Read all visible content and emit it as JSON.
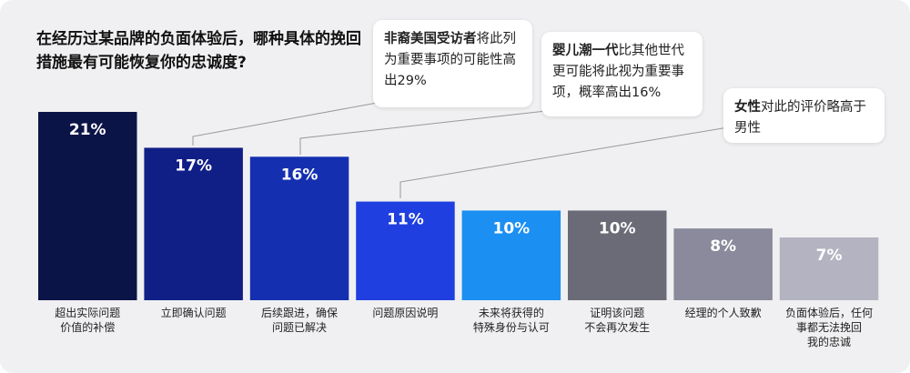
{
  "chart_data": {
    "type": "bar",
    "title": "在经历过某品牌的负面体验后，哪种具体的挽回措施最有可能恢复你的忠诚度?",
    "categories": [
      "超出实际问题\n价值的补偿",
      "立即确认问题",
      "后续跟进，确保\n问题已解决",
      "问题原因说明",
      "未来将获得的\n特殊身份与认可",
      "证明该问题\n不会再次发生",
      "经理的个人致歉",
      "负面体验后，任何\n事都无法挽回\n我的忠诚"
    ],
    "values": [
      21,
      17,
      16,
      11,
      10,
      10,
      8,
      7
    ],
    "value_labels": [
      "21%",
      "17%",
      "16%",
      "11%",
      "10%",
      "10%",
      "8%",
      "7%"
    ],
    "colors": [
      "#0b1446",
      "#101f86",
      "#1430b0",
      "#1f3fe0",
      "#1b8ff2",
      "#6b6b78",
      "#8a8a9c",
      "#b3b3c2"
    ],
    "annotations": [
      {
        "bold": "非裔美国受访者",
        "text": "将此列为重要事项的可能性高出29%"
      },
      {
        "bold": "婴儿潮一代",
        "text": "比其他世代更可能将此视为重要事项，概率高出16%"
      },
      {
        "bold": "女性",
        "text": "对此的评价略高于男性"
      }
    ]
  }
}
